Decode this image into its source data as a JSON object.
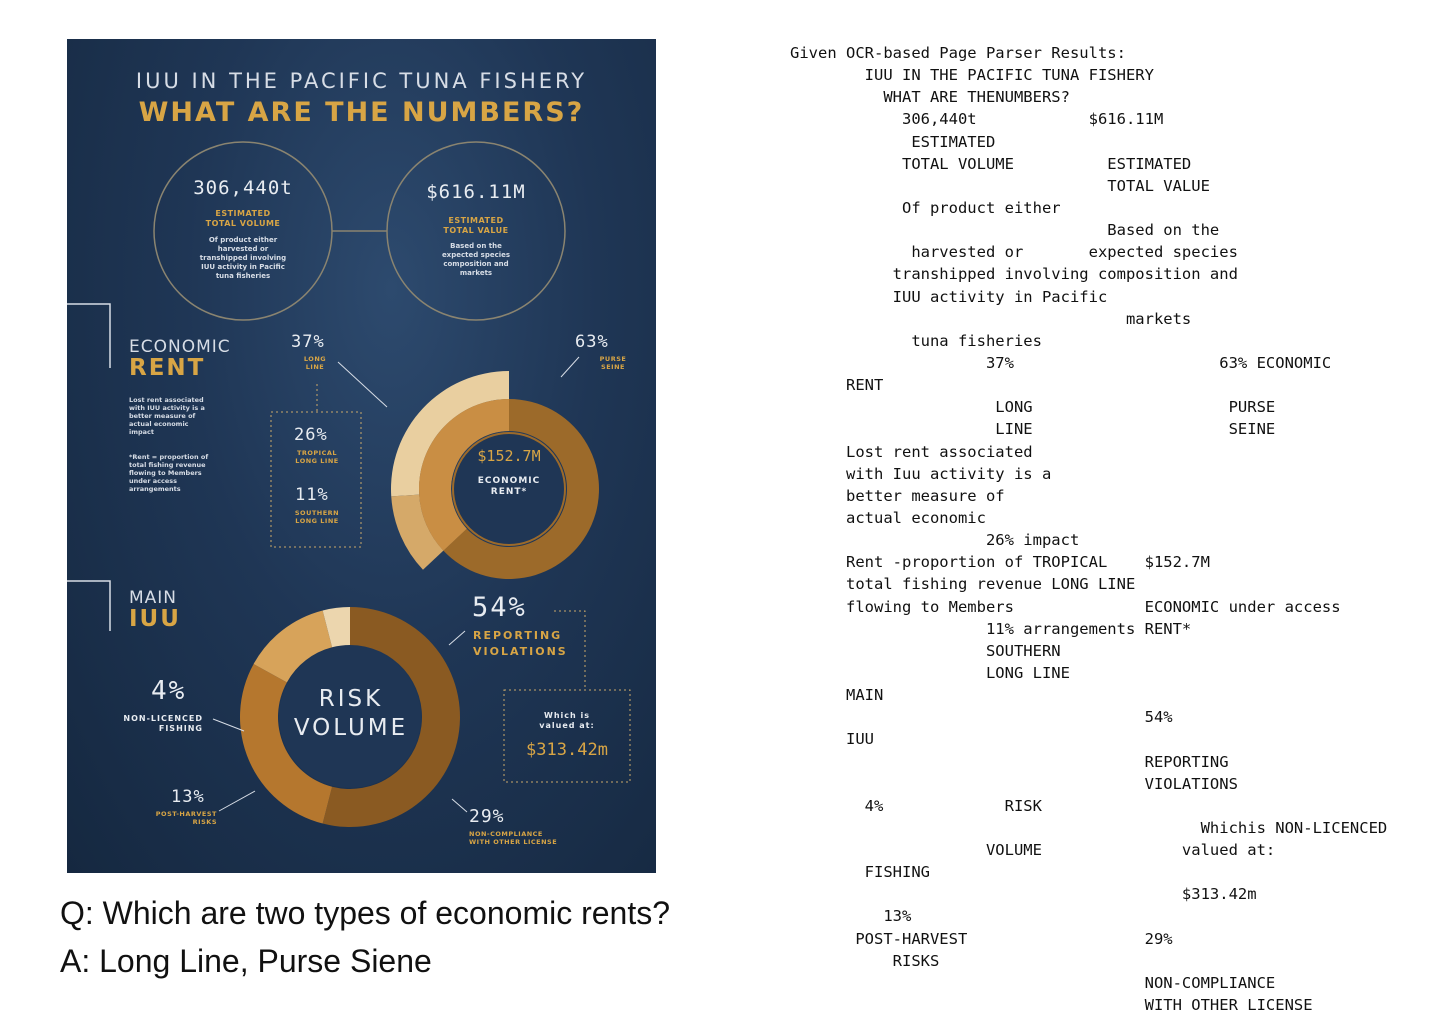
{
  "infographic": {
    "title_line1": "IUU IN THE PACIFIC TUNA FISHERY",
    "title_line2": "WHAT ARE THE NUMBERS?",
    "volume": {
      "value": "306,440t",
      "label1": "ESTIMATED",
      "label2": "TOTAL VOLUME",
      "desc": [
        "Of product either",
        "harvested or",
        "transhipped involving",
        "IUU activity in Pacific",
        "tuna fisheries"
      ]
    },
    "value_box": {
      "value": "$616.11M",
      "label1": "ESTIMATED",
      "label2": "TOTAL VALUE",
      "desc": [
        "Based on the",
        "expected species",
        "composition and",
        "markets"
      ]
    },
    "rent": {
      "heading1": "ECONOMIC",
      "heading2": "RENT",
      "note1": [
        "Lost rent associated",
        "with IUU activity is a",
        "better measure of",
        "actual economic",
        "impact"
      ],
      "note2": [
        "*Rent = proportion of",
        "total fishing revenue",
        "flowing to Members",
        "under access",
        "arrangements"
      ],
      "center_value": "$152.7M",
      "center_label1": "ECONOMIC",
      "center_label2": "RENT*",
      "segments": [
        {
          "pct": "37%",
          "label1": "LONG",
          "label2": "LINE",
          "value": 37
        },
        {
          "pct": "63%",
          "label1": "PURSE",
          "label2": "SEINE",
          "value": 63
        }
      ],
      "sub_segments": [
        {
          "pct": "26%",
          "label1": "TROPICAL",
          "label2": "LONG LINE",
          "value": 26
        },
        {
          "pct": "11%",
          "label1": "SOUTHERN",
          "label2": "LONG LINE",
          "value": 11
        }
      ]
    },
    "iuu": {
      "heading1": "MAIN",
      "heading2": "IUU",
      "center1": "RISK",
      "center2": "VOLUME",
      "segments": [
        {
          "pct": "54%",
          "label1": "REPORTING",
          "label2": "VIOLATIONS",
          "value": 54
        },
        {
          "pct": "29%",
          "label1": "NON-COMPLIANCE",
          "label2": "WITH OTHER LICENSE",
          "value": 29
        },
        {
          "pct": "13%",
          "label1": "POST-HARVEST",
          "label2": "RISKS",
          "value": 13
        },
        {
          "pct": "4%",
          "label1": "NON-LICENCED",
          "label2": "FISHING",
          "value": 4
        }
      ],
      "valued_label1": "Which is",
      "valued_label2": "valued at:",
      "valued_amount": "$313.42m"
    }
  },
  "qa": {
    "question": "Q: Which are two types of economic rents?",
    "answer": "A: Long Line, Purse Siene"
  },
  "ocr": {
    "lines": [
      "Given OCR-based Page Parser Results:",
      "        IUU IN THE PACIFIC TUNA FISHERY",
      "          WHAT ARE THENUMBERS?",
      "            306,440t            $616.11M",
      "             ESTIMATED",
      "            TOTAL VOLUME          ESTIMATED",
      "                                  TOTAL VALUE",
      "            Of product either",
      "                                  Based on the",
      "             harvested or       expected species",
      "           transhipped involving composition and",
      "           IUU activity in Pacific",
      "                                    markets",
      "             tuna fisheries",
      "                     37%                      63% ECONOMIC",
      "      RENT",
      "                      LONG                     PURSE",
      "                      LINE                     SEINE",
      "      Lost rent associated",
      "      with Iuu activity is a",
      "      better measure of",
      "      actual economic",
      "                     26% impact",
      "      Rent -proportion of TROPICAL    $152.7M",
      "      total fishing revenue LONG LINE",
      "      flowing to Members              ECONOMIC under access",
      "                     11% arrangements RENT*",
      "                     SOUTHERN",
      "                     LONG LINE",
      "      MAIN",
      "                                      54%",
      "      IUU",
      "                                      REPORTING",
      "                                      VIOLATIONS",
      "        4%             RISK",
      "                                            Whichis NON-LICENCED",
      "                     VOLUME               valued at:",
      "        FISHING",
      "                                          $313.42m",
      "          13%",
      "       POST-HARVEST                   29%",
      "           RISKS",
      "                                      NON-COMPLIANCE",
      "                                      WITH OTHER LICENSE"
    ]
  }
}
